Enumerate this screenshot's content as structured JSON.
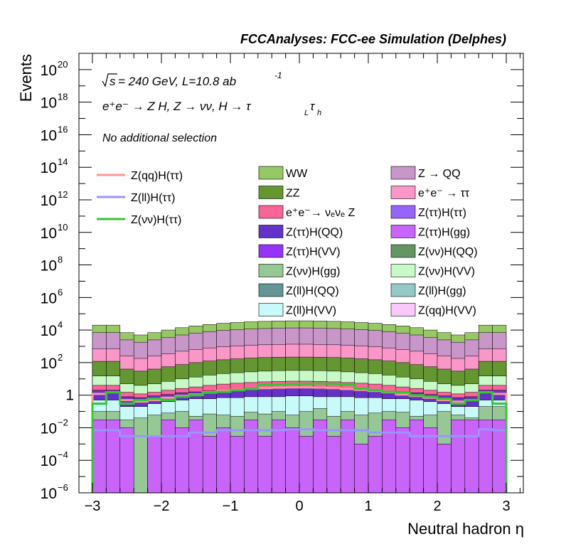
{
  "header": "FCCAnalyses: FCC-ee Simulation (Delphes)",
  "annotations": {
    "energy_root": "s",
    "energy_line": "= 240 GeV, L=10.8 ab",
    "energy_exp": "-1",
    "process_line": "e⁺e⁻ → Z H, Z → νν, H → τ",
    "process_sub1": "L",
    "process_tau": "τ",
    "process_sub2": "h",
    "selection": "No additional selection"
  },
  "colors": {
    "WW": "#96c864",
    "ZZ": "#649632",
    "ZQQ": "#c896c8",
    "eetautau": "#fa96c8",
    "eenunuZ": "#fa6496",
    "ZtautauHtautau": "#9664fa",
    "ZtautauHQQ": "#6432c8",
    "ZtautauHgg": "#c864fa",
    "ZtautauHVV": "#9632fa",
    "ZnunuHQQ": "#649664",
    "ZnunuHgg": "#96c896",
    "ZnunuHVV": "#c8fac8",
    "ZllHQQ": "#649696",
    "ZllHgg": "#96c8c8",
    "ZllHVV": "#c8fafa",
    "ZqqHVV": "#fac8fa",
    "sig_qq": "#ff9696",
    "sig_ll": "#9696ff",
    "sig_nunu": "#32c832"
  },
  "chart_data": {
    "type": "area",
    "title": "",
    "xlabel": "Neutral hadron η",
    "ylabel": "Events",
    "xlim": [
      -3,
      3
    ],
    "ylim": [
      1e-06,
      1e+21
    ],
    "log_y": true,
    "x_ticks": [
      "−3",
      "−2",
      "−1",
      "0",
      "1",
      "2",
      "3"
    ],
    "y_ticks": [
      {
        "value": 1e-06,
        "base": "10",
        "exp": "−6"
      },
      {
        "value": 0.0001,
        "base": "10",
        "exp": "−4"
      },
      {
        "value": 0.01,
        "base": "10",
        "exp": "−2"
      },
      {
        "value": 1,
        "base": "1",
        "exp": ""
      },
      {
        "value": 100.0,
        "base": "10",
        "exp": "2"
      },
      {
        "value": 10000.0,
        "base": "10",
        "exp": "4"
      },
      {
        "value": 1000000.0,
        "base": "10",
        "exp": "6"
      },
      {
        "value": 100000000.0,
        "base": "10",
        "exp": "8"
      },
      {
        "value": 10000000000.0,
        "base": "10",
        "exp": "10"
      },
      {
        "value": 1000000000000.0,
        "base": "10",
        "exp": "12"
      },
      {
        "value": 100000000000000.0,
        "base": "10",
        "exp": "14"
      },
      {
        "value": 1e+16,
        "base": "10",
        "exp": "16"
      },
      {
        "value": 1e+18,
        "base": "10",
        "exp": "18"
      },
      {
        "value": 1e+20,
        "base": "10",
        "exp": "20"
      }
    ],
    "bin_edges": [
      -3.0,
      -2.8,
      -2.6,
      -2.4,
      -2.2,
      -2.0,
      -1.8,
      -1.6,
      -1.4,
      -1.2,
      -1.0,
      -0.8,
      -0.6,
      -0.4,
      -0.2,
      0.0,
      0.2,
      0.4,
      0.6,
      0.8,
      1.0,
      1.2,
      1.4,
      1.6,
      1.8,
      2.0,
      2.2,
      2.4,
      2.6,
      2.8,
      3.0
    ],
    "stack_totals": {
      "name": "stacked background (top of stack, by component)",
      "WW": [
        20000,
        20000,
        7000,
        5000,
        7000,
        10000,
        14000,
        18000,
        22000,
        26000,
        29000,
        32000,
        34000,
        36000,
        37000,
        37000,
        36000,
        34000,
        32000,
        29000,
        26000,
        22000,
        18000,
        14000,
        10000,
        7000,
        5000,
        7000,
        20000,
        20000
      ],
      "ZQQ": [
        7000,
        7000,
        2500,
        1800,
        2500,
        3500,
        5000,
        6500,
        8000,
        9500,
        10500,
        11500,
        12500,
        13000,
        13500,
        13500,
        13000,
        12500,
        11500,
        10500,
        9500,
        8000,
        6500,
        5000,
        3500,
        2500,
        1800,
        2500,
        7000,
        7000
      ],
      "eetautau": [
        700,
        700,
        250,
        180,
        250,
        350,
        500,
        650,
        800,
        950,
        1050,
        1150,
        1250,
        1300,
        1350,
        1350,
        1300,
        1250,
        1150,
        1050,
        950,
        800,
        650,
        500,
        350,
        250,
        180,
        250,
        700,
        700
      ],
      "ZZ": [
        120,
        120,
        40,
        30,
        40,
        55,
        75,
        100,
        125,
        150,
        170,
        190,
        205,
        215,
        220,
        220,
        215,
        205,
        190,
        170,
        150,
        125,
        100,
        75,
        55,
        40,
        30,
        40,
        120,
        120
      ],
      "ZnunuHVV": [
        15,
        15,
        5,
        4,
        5,
        7,
        10,
        13,
        17,
        21,
        24,
        27,
        30,
        32,
        33,
        33,
        32,
        30,
        27,
        24,
        21,
        17,
        13,
        10,
        7,
        5,
        4,
        5,
        15,
        15
      ],
      "eenunuZ": [
        4,
        4,
        1.5,
        1.2,
        1.5,
        2,
        2.6,
        3.2,
        4,
        4.8,
        5.4,
        6,
        6.6,
        7,
        7.2,
        7.2,
        7,
        6.6,
        6,
        5.4,
        4.8,
        4,
        3.2,
        2.6,
        2,
        1.5,
        1.2,
        1.5,
        4,
        4
      ],
      "low": [
        2,
        2,
        0.8,
        0.7,
        0.9,
        1.1,
        1.4,
        1.6,
        1.8,
        2.0,
        2.2,
        2.4,
        2.6,
        2.7,
        2.8,
        2.8,
        2.7,
        2.6,
        2.4,
        2.2,
        2.0,
        1.8,
        1.6,
        1.4,
        1.1,
        0.9,
        0.7,
        0.8,
        2,
        2
      ],
      "ZllHVV": [
        0.5,
        0.5,
        0.2,
        0.2,
        0.3,
        0.4,
        0.5,
        0.6,
        0.6,
        0.7,
        0.7,
        0.8,
        0.8,
        0.8,
        0.9,
        0.9,
        0.8,
        0.8,
        0.8,
        0.7,
        0.7,
        0.6,
        0.6,
        0.5,
        0.4,
        0.3,
        0.2,
        0.2,
        0.5,
        0.5
      ],
      "ZtautauHQQ": [
        0.1,
        0.1,
        0.03,
        0.04,
        0.06,
        0.08,
        0.1,
        0.05,
        0.07,
        0.06,
        0.05,
        0.09,
        0.07,
        0.1,
        0.06,
        0.1,
        0.15,
        0.05,
        0.1,
        0.06,
        0.08,
        0.1,
        0.09,
        0.05,
        0.06,
        0.1,
        0.06,
        0.04,
        0.2,
        0.2
      ],
      "ZtautauHgg": [
        0.03,
        0.03,
        0.01,
        1e-06,
        0.003,
        0.03,
        0.01,
        0.03,
        0.003,
        0.01,
        0.003,
        0.03,
        0.003,
        0.03,
        0.01,
        0.003,
        0.03,
        0.003,
        0.03,
        0.001,
        0.003,
        0.03,
        0.01,
        0.03,
        0.01,
        0.001,
        0.03,
        0.03,
        0.03,
        0.03
      ]
    },
    "signals": [
      {
        "name": "Z(qq)H(ττ)",
        "color_key": "sig_qq",
        "values": [
          1.2,
          1.5,
          0.5,
          0.4,
          0.5,
          0.7,
          0.9,
          1.1,
          1.5,
          1.8,
          2.1,
          2.4,
          2.7,
          2.9,
          3.0,
          3.0,
          2.9,
          2.7,
          2.4,
          2.1,
          1.8,
          1.5,
          1.1,
          0.9,
          0.7,
          0.5,
          0.4,
          0.5,
          1.5,
          1.2
        ]
      },
      {
        "name": "Z(ll)H(ττ)",
        "color_key": "sig_ll",
        "values": [
          0.007,
          0.007,
          0.003,
          0.003,
          0.003,
          0.003,
          0.003,
          0.005,
          0.005,
          0.007,
          0.007,
          0.007,
          0.007,
          0.007,
          0.008,
          0.008,
          0.007,
          0.007,
          0.007,
          0.007,
          0.005,
          0.005,
          0.005,
          0.003,
          0.003,
          0.003,
          0.003,
          0.003,
          0.008,
          0.007
        ]
      },
      {
        "name": "Z(νν)H(ττ)",
        "color_key": "sig_nunu",
        "values": [
          0.3,
          1.5,
          0.3,
          0.5,
          0.6,
          0.5,
          0.8,
          1.0,
          1.4,
          1.6,
          2.0,
          2.4,
          4.5,
          4.5,
          4.8,
          5.0,
          5.2,
          5.0,
          4.5,
          2.5,
          2.0,
          1.6,
          1.4,
          1.0,
          0.8,
          0.6,
          0.3,
          0.5,
          1.5,
          0.3
        ]
      }
    ],
    "legend_lines": [
      {
        "label": "Z(qq)H(ττ)",
        "color_key": "sig_qq"
      },
      {
        "label": "Z(ll)H(ττ)",
        "color_key": "sig_ll"
      },
      {
        "label": "Z(νν)H(ττ)",
        "color_key": "sig_nunu"
      }
    ],
    "legend_boxes": [
      {
        "label": "WW",
        "color_key": "WW"
      },
      {
        "label": "Z → QQ",
        "color_key": "ZQQ"
      },
      {
        "label": "ZZ",
        "color_key": "ZZ"
      },
      {
        "label": "e⁺e⁻ → ττ",
        "color_key": "eetautau"
      },
      {
        "label": "e⁺e⁻→ νₑνₑ Z",
        "color_key": "eenunuZ"
      },
      {
        "label": "Z(ττ)H(ττ)",
        "color_key": "ZtautauHtautau"
      },
      {
        "label": "Z(ττ)H(QQ)",
        "color_key": "ZtautauHQQ"
      },
      {
        "label": "Z(ττ)H(gg)",
        "color_key": "ZtautauHgg"
      },
      {
        "label": "Z(ττ)H(VV)",
        "color_key": "ZtautauHVV"
      },
      {
        "label": "Z(νν)H(QQ)",
        "color_key": "ZnunuHQQ"
      },
      {
        "label": "Z(νν)H(gg)",
        "color_key": "ZnunuHgg"
      },
      {
        "label": "Z(νν)H(VV)",
        "color_key": "ZnunuHVV"
      },
      {
        "label": "Z(ll)H(QQ)",
        "color_key": "ZllHQQ"
      },
      {
        "label": "Z(ll)H(gg)",
        "color_key": "ZllHgg"
      },
      {
        "label": "Z(ll)H(VV)",
        "color_key": "ZllHVV"
      },
      {
        "label": "Z(qq)H(VV)",
        "color_key": "ZqqHVV"
      }
    ]
  }
}
